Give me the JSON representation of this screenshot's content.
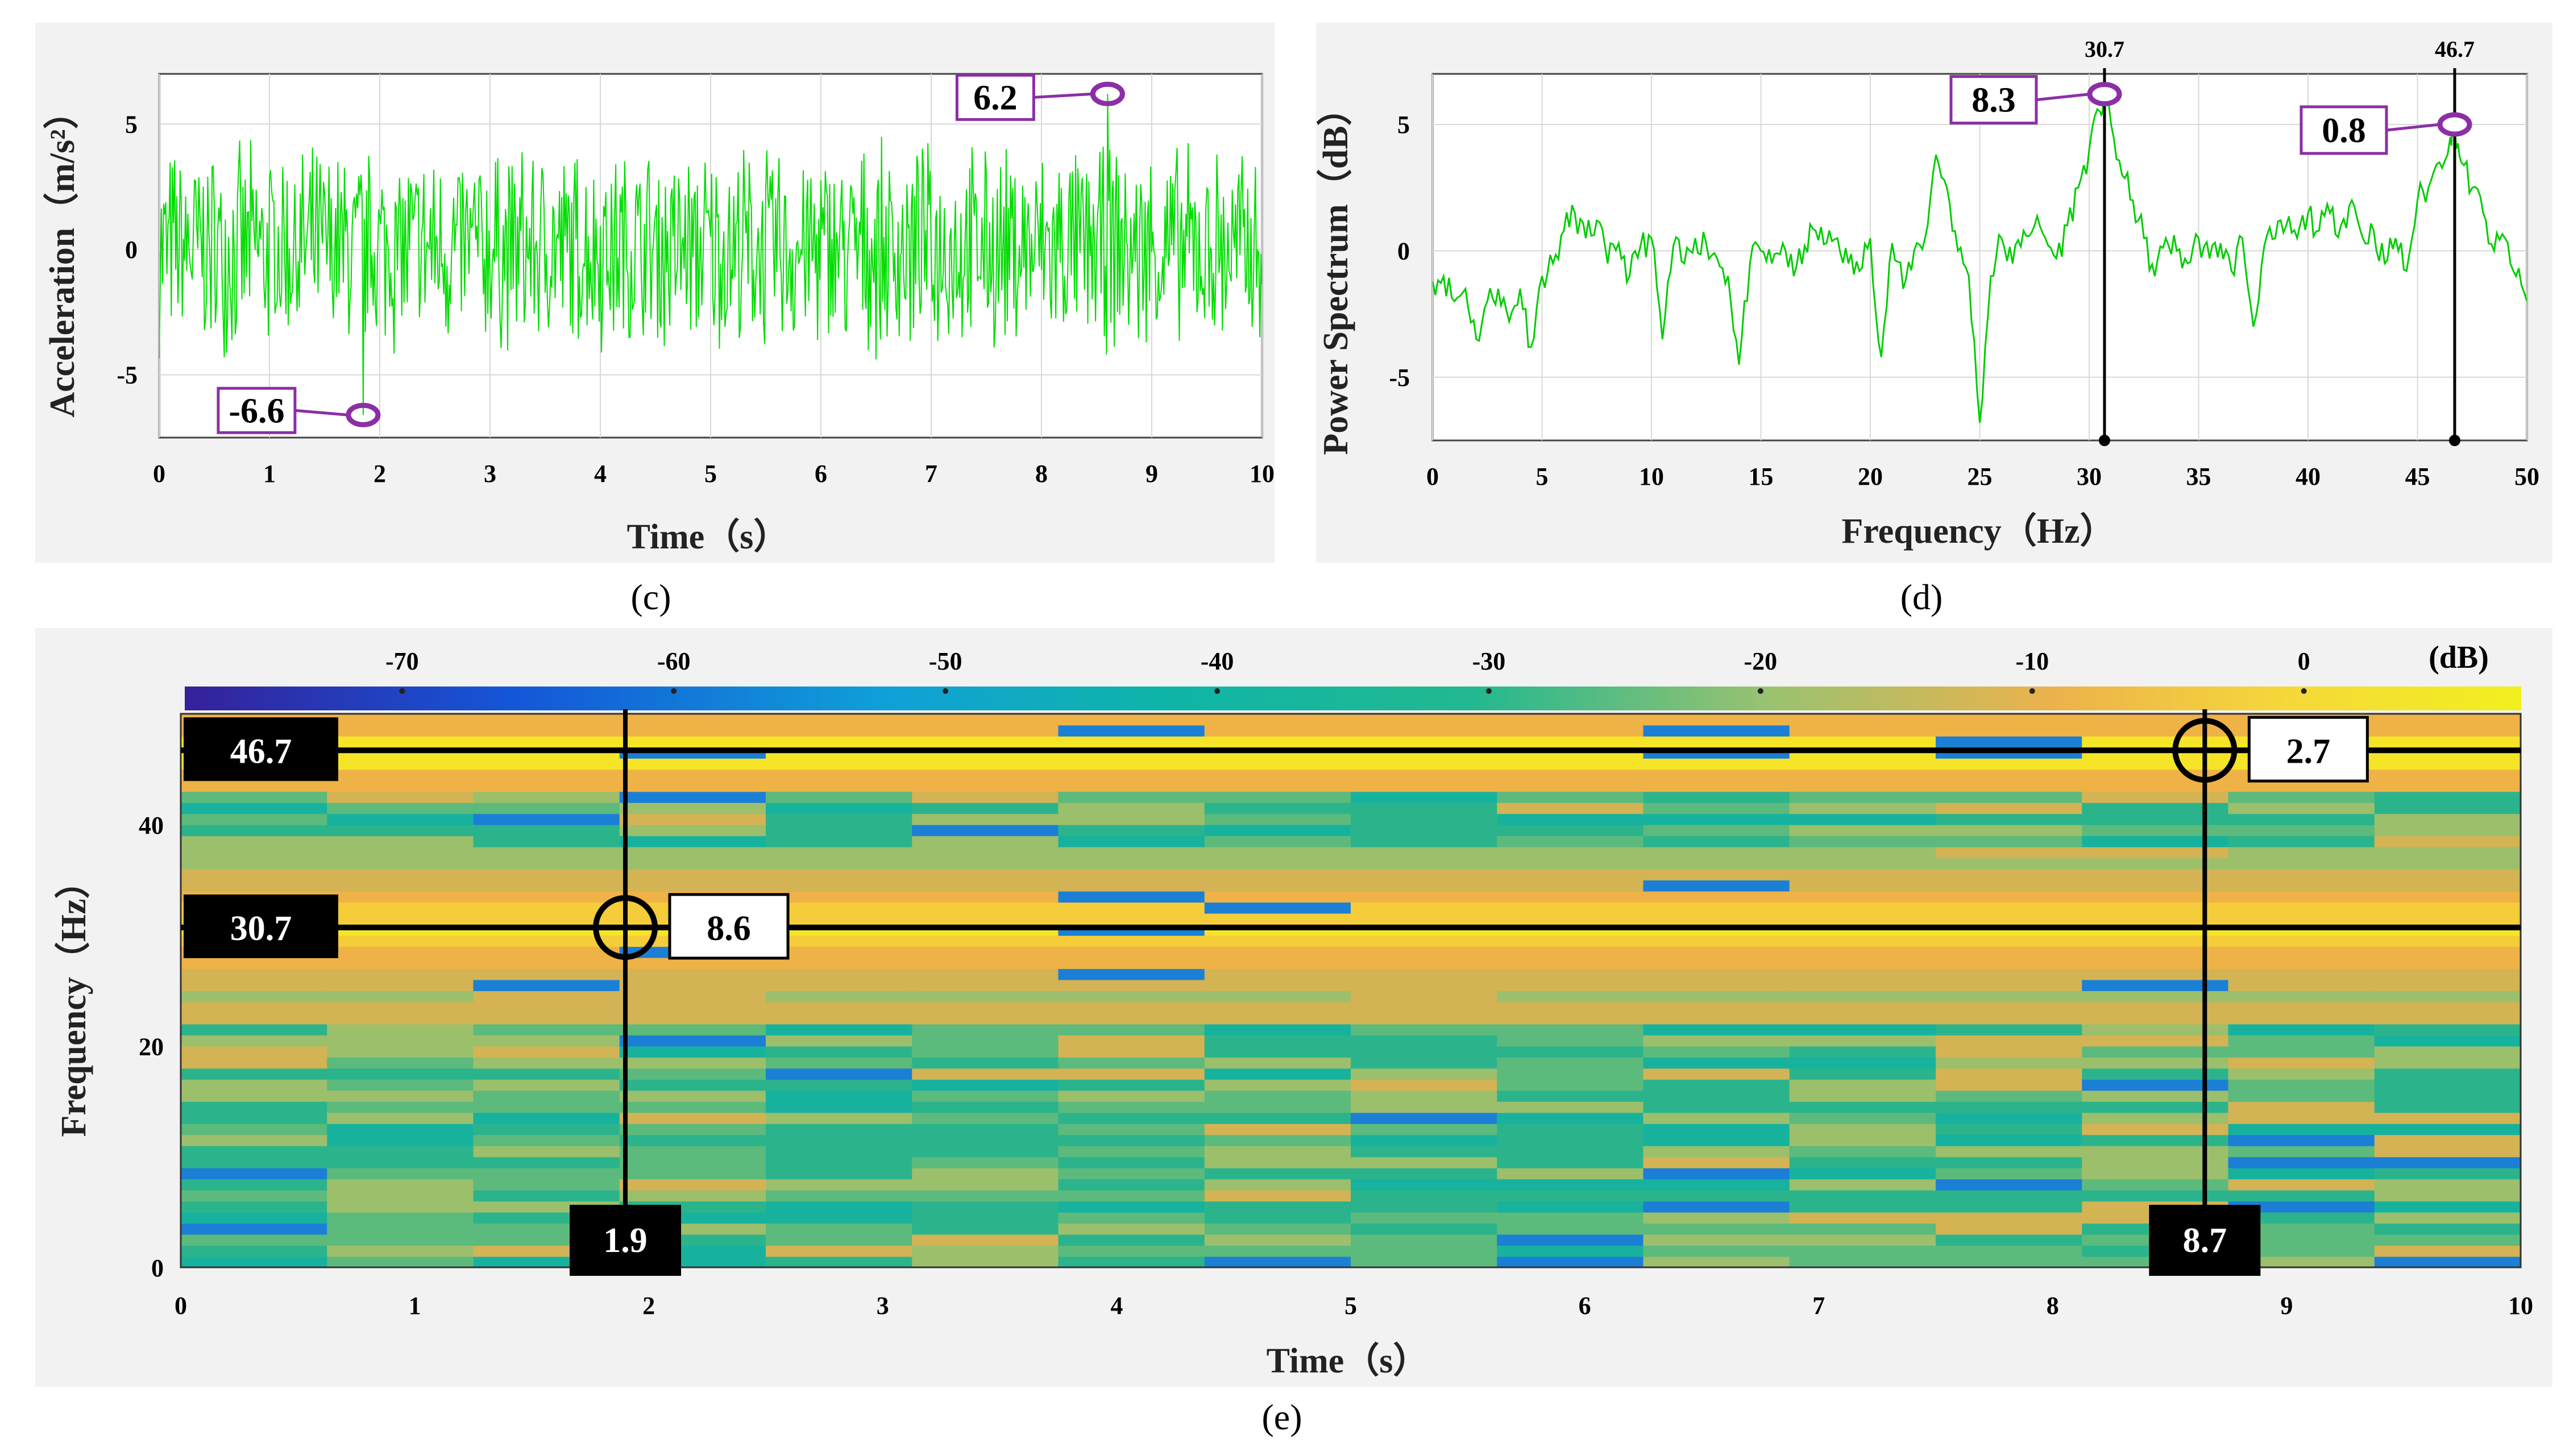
{
  "chart_data": [
    {
      "id": "c",
      "type": "line",
      "caption": "(c)",
      "xlabel": "Time（s）",
      "ylabel": "Acceleration（m/s²）",
      "xlim": [
        0,
        10
      ],
      "ylim": [
        -7.5,
        7
      ],
      "xticks": [
        0,
        1,
        2,
        3,
        4,
        5,
        6,
        7,
        8,
        9,
        10
      ],
      "yticks": [
        5,
        0,
        -5
      ],
      "line_color": "#00dd00",
      "envelope": {
        "sample_rate_hz": 100,
        "typical_amplitude": 4.5
      },
      "annotations": [
        {
          "x": 8.6,
          "y": 6.2,
          "label": "6.2",
          "kind": "max"
        },
        {
          "x": 1.85,
          "y": -6.6,
          "label": "-6.6",
          "kind": "min"
        }
      ]
    },
    {
      "id": "d",
      "type": "line",
      "caption": "(d)",
      "xlabel": "Frequency（Hz）",
      "ylabel": "Power Spectrum（dB）",
      "xlim": [
        0,
        50
      ],
      "ylim": [
        -7.5,
        7
      ],
      "xticks": [
        0,
        5,
        10,
        15,
        20,
        25,
        30,
        35,
        40,
        45,
        50
      ],
      "yticks": [
        5,
        0,
        -5
      ],
      "line_color": "#00cc00",
      "series": [
        {
          "name": "spectrum",
          "x": [
            0,
            0.5,
            1,
            1.5,
            2,
            2.5,
            3,
            3.5,
            4,
            4.5,
            5,
            5.5,
            6,
            6.5,
            7,
            7.5,
            8,
            8.5,
            9,
            9.5,
            10,
            10.5,
            11,
            11.5,
            12,
            12.5,
            13,
            13.5,
            14,
            14.5,
            15,
            15.5,
            16,
            16.5,
            17,
            17.5,
            18,
            18.5,
            19,
            19.5,
            20,
            20.5,
            21,
            21.5,
            22,
            22.5,
            23,
            23.5,
            24,
            24.5,
            25,
            25.5,
            26,
            26.5,
            27,
            27.5,
            28,
            28.5,
            29,
            29.5,
            30,
            30.5,
            30.7,
            31,
            31.5,
            32,
            32.5,
            33,
            33.5,
            34,
            34.5,
            35,
            35.5,
            36,
            36.5,
            37,
            37.5,
            38,
            38.5,
            39,
            39.5,
            40,
            40.5,
            41,
            41.5,
            42,
            42.5,
            43,
            43.5,
            44,
            44.5,
            45,
            45.5,
            46,
            46.5,
            46.7,
            47,
            47.5,
            48,
            48.5,
            49,
            49.5,
            50
          ],
          "y": [
            -1.2,
            -1.0,
            -2.0,
            -1.5,
            -3.5,
            -2.0,
            -1.5,
            -2.8,
            -1.5,
            -3.8,
            -1.0,
            -0.5,
            0.8,
            1.5,
            0.5,
            1.2,
            -0.5,
            0.3,
            -1.0,
            0.2,
            0.5,
            -3.5,
            0.2,
            -0.5,
            0.5,
            0.3,
            -0.3,
            -1.0,
            -4.5,
            -0.5,
            0.0,
            -0.5,
            0.3,
            -1.0,
            0.2,
            0.8,
            0.3,
            0.5,
            -0.5,
            -0.8,
            0.5,
            -4.2,
            0.3,
            -1.5,
            0.0,
            0.5,
            3.8,
            2.5,
            0.0,
            -1.0,
            -6.8,
            -1.0,
            0.5,
            -0.5,
            0.8,
            1.0,
            0.5,
            -0.3,
            1.0,
            2.5,
            4.0,
            5.5,
            6.2,
            5.0,
            3.0,
            2.0,
            0.5,
            -1.0,
            0.5,
            0.0,
            -0.5,
            0.5,
            -0.3,
            0.3,
            -0.8,
            0.5,
            -3.0,
            0.2,
            0.5,
            1.0,
            0.5,
            1.5,
            0.8,
            1.5,
            1.0,
            2.0,
            0.5,
            0.8,
            -0.5,
            0.5,
            -0.8,
            2.0,
            2.5,
            3.5,
            4.5,
            5.0,
            3.5,
            2.5,
            1.5,
            0.0,
            0.5,
            -1.0,
            -2.0
          ]
        }
      ],
      "annotations": [
        {
          "x": 30.7,
          "y": 6.2,
          "label": "8.3",
          "top_label": "30.7"
        },
        {
          "x": 46.7,
          "y": 5.0,
          "label": "0.8",
          "top_label": "46.7"
        }
      ]
    },
    {
      "id": "e",
      "type": "heatmap",
      "caption": "(e)",
      "xlabel": "Time（s）",
      "ylabel": "Frequency（Hz）",
      "xlim": [
        0,
        10
      ],
      "ylim": [
        0,
        50
      ],
      "xticks": [
        0,
        1,
        2,
        3,
        4,
        5,
        6,
        7,
        8,
        9,
        10
      ],
      "yticks": [
        40,
        20,
        0
      ],
      "colorbar": {
        "ticks": [
          -70,
          -60,
          -50,
          -40,
          -30,
          -20,
          -10,
          0
        ],
        "unit": "(dB)",
        "range": [
          -78,
          8
        ],
        "stops": [
          "#35219a",
          "#1456d8",
          "#10a0d8",
          "#0fb5a8",
          "#22b890",
          "#9cc270",
          "#ecb24c",
          "#f5d83a",
          "#f2f01e"
        ]
      },
      "markers": [
        {
          "freq": 46.7,
          "time": 8.65,
          "freq_label": "46.7",
          "time_label": "8.7",
          "value_label": "2.7"
        },
        {
          "freq": 30.7,
          "time": 1.9,
          "freq_label": "30.7",
          "time_label": "1.9",
          "value_label": "8.6"
        }
      ]
    }
  ]
}
